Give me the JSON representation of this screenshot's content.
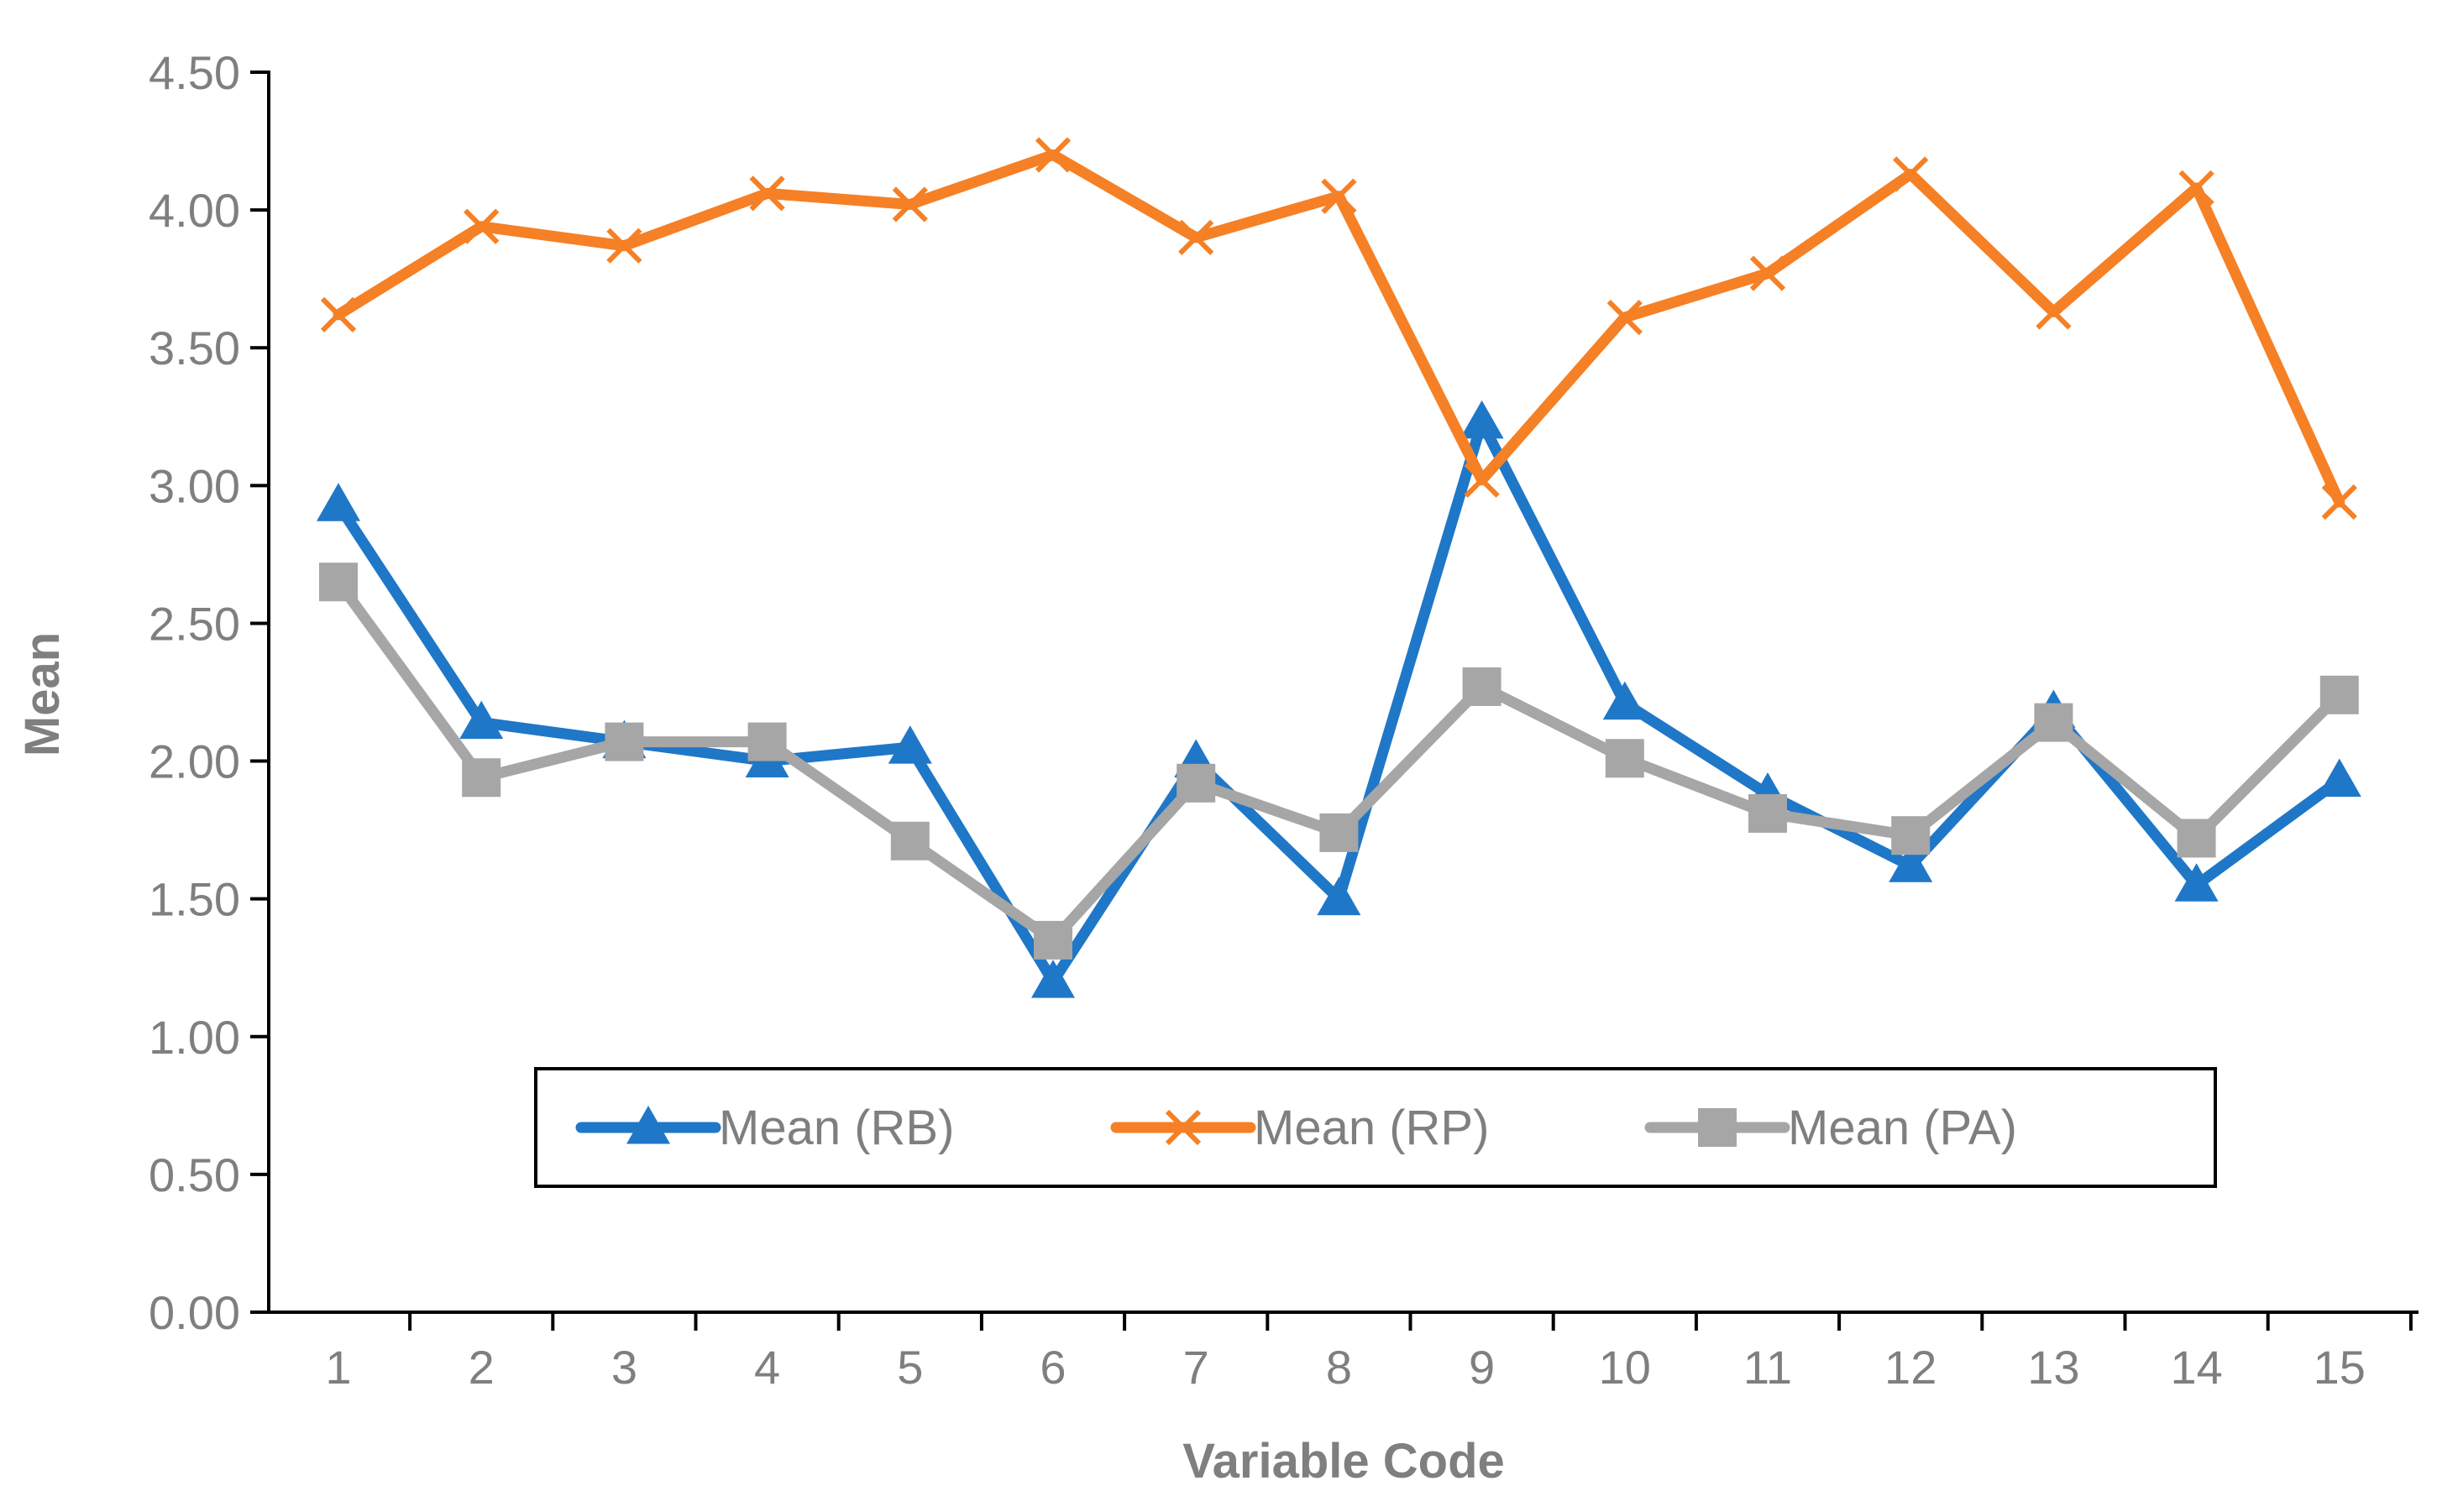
{
  "colors": {
    "rb": "#1f77c8",
    "rp": "#f58025",
    "pa": "#a6a6a6",
    "axis": "#000000",
    "text": "#7f7f7f"
  },
  "chart_data": {
    "type": "line",
    "title": "",
    "xlabel": "Variable Code",
    "ylabel": "Mean",
    "ylim": [
      0,
      4.5
    ],
    "yticks": [
      "0.00",
      "0.50",
      "1.00",
      "1.50",
      "2.00",
      "2.50",
      "3.00",
      "3.50",
      "4.00",
      "4.50"
    ],
    "categories": [
      "1",
      "2",
      "3",
      "4",
      "5",
      "6",
      "7",
      "8",
      "9",
      "10",
      "11",
      "12",
      "13",
      "14",
      "15"
    ],
    "legend_position": "bottom-center",
    "grid": false,
    "series": [
      {
        "name": "Mean (RB)",
        "marker": "triangle",
        "color_key": "rb",
        "values": [
          2.93,
          2.14,
          2.07,
          2.0,
          2.05,
          1.2,
          2.0,
          1.5,
          3.23,
          2.21,
          1.88,
          1.62,
          2.18,
          1.55,
          1.93
        ]
      },
      {
        "name": "Mean (RP)",
        "marker": "x",
        "color_key": "rp",
        "values": [
          3.62,
          3.94,
          3.87,
          4.06,
          4.02,
          4.2,
          3.9,
          4.05,
          3.02,
          3.61,
          3.77,
          4.13,
          3.63,
          4.08,
          2.94
        ]
      },
      {
        "name": "Mean (PA)",
        "marker": "square",
        "color_key": "pa",
        "values": [
          2.65,
          1.94,
          2.07,
          2.07,
          1.71,
          1.35,
          1.92,
          1.74,
          2.27,
          2.01,
          1.81,
          1.73,
          2.14,
          1.72,
          2.24
        ]
      }
    ]
  }
}
